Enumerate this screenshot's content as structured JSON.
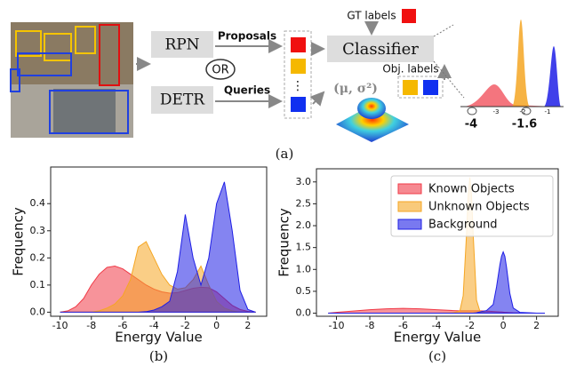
{
  "diagram": {
    "rpn": "RPN",
    "or": "OR",
    "detr": "DETR",
    "proposals": "Proposals",
    "queries": "Queries",
    "dots": "⋮",
    "gaussian": "(μ, σ²)",
    "classifier": "Classifier",
    "gt_labels": "GT labels",
    "obj_labels": "Obj. labels",
    "inset_ticks": [
      "-3",
      "-2",
      "-1"
    ],
    "threshold_low": "-4",
    "threshold_high": "-1.6",
    "caption": "(a)"
  },
  "chart_data": [
    {
      "type": "area",
      "caption": "(b)",
      "xlabel": "Energy Value",
      "ylabel": "Frequency",
      "x": [
        -10,
        -9.5,
        -9,
        -8.5,
        -8,
        -7.5,
        -7,
        -6.5,
        -6,
        -5.5,
        -5,
        -4.5,
        -4,
        -3.5,
        -3,
        -2.5,
        -2,
        -1.5,
        -1,
        -0.5,
        0,
        0.5,
        1,
        1.5,
        2,
        2.5
      ],
      "series": [
        {
          "color": "#f03a47",
          "values": [
            0,
            0.005,
            0.02,
            0.05,
            0.1,
            0.14,
            0.165,
            0.17,
            0.16,
            0.14,
            0.12,
            0.1,
            0.085,
            0.075,
            0.07,
            0.072,
            0.08,
            0.088,
            0.092,
            0.09,
            0.075,
            0.05,
            0.025,
            0.01,
            0.003,
            0
          ]
        },
        {
          "color": "#f5a623",
          "values": [
            0,
            0,
            0,
            0,
            0,
            0.005,
            0.015,
            0.03,
            0.06,
            0.12,
            0.24,
            0.26,
            0.2,
            0.14,
            0.1,
            0.085,
            0.09,
            0.12,
            0.17,
            0.1,
            0.04,
            0.015,
            0.005,
            0,
            0,
            0
          ]
        },
        {
          "color": "#1f1fe6",
          "values": [
            0,
            0,
            0,
            0,
            0,
            0,
            0,
            0,
            0,
            0,
            0,
            0.002,
            0.008,
            0.02,
            0.04,
            0.15,
            0.36,
            0.2,
            0.1,
            0.2,
            0.4,
            0.48,
            0.3,
            0.08,
            0.01,
            0
          ]
        }
      ],
      "xlim": [
        -10.6,
        3.2
      ],
      "xticks": [
        -10,
        -8,
        -6,
        -4,
        -2,
        0,
        2
      ],
      "ylim": [
        -0.015,
        0.535
      ],
      "yticks": [
        {
          "value": 0,
          "label": "0.0"
        },
        0.1,
        0.2,
        0.3,
        0.4
      ]
    },
    {
      "type": "area",
      "caption": "(c)",
      "xlabel": "Energy Value",
      "ylabel": "Frequency",
      "x": [
        -10.5,
        -10,
        -9,
        -8,
        -7,
        -6,
        -5,
        -4,
        -3,
        -2.6,
        -2.4,
        -2.2,
        -2.1,
        -2,
        -1.9,
        -1.8,
        -1.6,
        -1.4,
        -1,
        -0.6,
        -0.4,
        -0.2,
        -0.1,
        0,
        0.1,
        0.2,
        0.4,
        0.6,
        1,
        2,
        2.5
      ],
      "series": [
        {
          "name": "Known Objects",
          "color": "#f03a47",
          "values": [
            0,
            0.02,
            0.05,
            0.08,
            0.1,
            0.11,
            0.1,
            0.08,
            0.06,
            0.055,
            0.055,
            0.055,
            0.055,
            0.055,
            0.055,
            0.055,
            0.055,
            0.055,
            0.05,
            0.04,
            0.035,
            0.03,
            0.03,
            0.025,
            0.02,
            0.02,
            0.015,
            0.01,
            0.005,
            0,
            0
          ]
        },
        {
          "name": "Unknown Objects",
          "color": "#f5a623",
          "values": [
            0,
            0,
            0,
            0,
            0,
            0,
            0,
            0,
            0.01,
            0.05,
            0.4,
            1.8,
            2.7,
            3.1,
            2.7,
            1.8,
            0.3,
            0.05,
            0,
            0,
            0,
            0,
            0,
            0,
            0,
            0,
            0,
            0,
            0,
            0,
            0
          ]
        },
        {
          "name": "Background",
          "color": "#1f1fe6",
          "values": [
            0,
            0,
            0,
            0,
            0,
            0,
            0,
            0,
            0,
            0,
            0,
            0,
            0,
            0,
            0,
            0,
            0.01,
            0.03,
            0.06,
            0.2,
            0.6,
            1.1,
            1.3,
            1.4,
            1.3,
            1.05,
            0.45,
            0.12,
            0.02,
            0,
            0
          ]
        }
      ],
      "xlim": [
        -11.2,
        3.3
      ],
      "xticks": [
        -10,
        -8,
        -6,
        -4,
        -2,
        0,
        2
      ],
      "ylim": [
        -0.07,
        3.3
      ],
      "yticks": [
        {
          "value": 0,
          "label": "0.0"
        },
        0.5,
        {
          "value": 1,
          "label": "1.0"
        },
        1.5,
        {
          "value": 2,
          "label": "2.0"
        },
        2.5,
        {
          "value": 3,
          "label": "3.0"
        }
      ],
      "legend": "upper right"
    }
  ]
}
